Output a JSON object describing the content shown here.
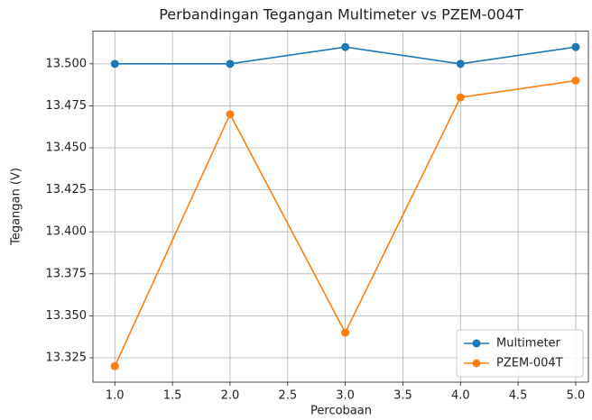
{
  "chart_data": {
    "type": "line",
    "title": "Perbandingan Tegangan Multimeter vs PZEM-004T",
    "xlabel": "Percobaan",
    "ylabel": "Tegangan (V)",
    "x": [
      1,
      2,
      3,
      4,
      5
    ],
    "series": [
      {
        "name": "Multimeter",
        "color": "#1f77b4",
        "values": [
          13.5,
          13.5,
          13.51,
          13.5,
          13.51
        ]
      },
      {
        "name": "PZEM-004T",
        "color": "#ff7f0e",
        "values": [
          13.32,
          13.47,
          13.34,
          13.48,
          13.49
        ]
      }
    ],
    "xlim": [
      0.81,
      5.11
    ],
    "xticks": [
      {
        "value": 1,
        "label": "1.0"
      },
      {
        "value": 1.5,
        "label": "1.5"
      },
      {
        "value": 2,
        "label": "2.0"
      },
      {
        "value": 2.5,
        "label": "2.5"
      },
      {
        "value": 3,
        "label": "3.0"
      },
      {
        "value": 3.5,
        "label": "3.5"
      },
      {
        "value": 4,
        "label": "4.0"
      },
      {
        "value": 4.5,
        "label": "4.5"
      },
      {
        "value": 5,
        "label": "5.0"
      }
    ],
    "ylim": [
      13.3105,
      13.5195
    ],
    "yticks": [
      13.325,
      {
        "value": 13.35,
        "label": "13.350"
      },
      13.375,
      {
        "value": 13.4,
        "label": "13.400"
      },
      13.425,
      {
        "value": 13.45,
        "label": "13.450"
      },
      13.475,
      {
        "value": 13.5,
        "label": "13.500"
      }
    ],
    "grid": true,
    "legend": "lower right"
  }
}
